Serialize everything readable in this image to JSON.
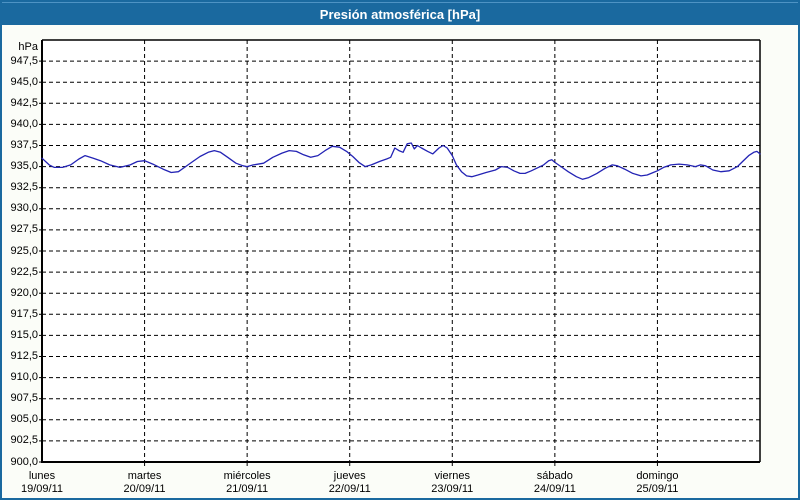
{
  "window": {
    "title": "Presión atmosférica [hPa]"
  },
  "colors": {
    "titlebar": "#1A699F",
    "frame": "#1A699F",
    "title_text": "#FFFFFF",
    "background": "#FBFDF8",
    "plot_background": "#FFFFFF",
    "grid": "#000000",
    "line": "#2323B4"
  },
  "chart_data": {
    "type": "line",
    "title": "Presión atmosférica [hPa]",
    "ylabel": "hPa",
    "y_unit_label": "hPa",
    "ylim": [
      900,
      950
    ],
    "y_tick_step": 2.5,
    "grid": "dashed",
    "legend_position": "none",
    "y_ticks": [
      {
        "label": "947,5",
        "value": 947.5
      },
      {
        "label": "945,0",
        "value": 945.0
      },
      {
        "label": "942,5",
        "value": 942.5
      },
      {
        "label": "940,0",
        "value": 940.0
      },
      {
        "label": "937,5",
        "value": 937.5
      },
      {
        "label": "935,0",
        "value": 935.0
      },
      {
        "label": "932,5",
        "value": 932.5
      },
      {
        "label": "930,0",
        "value": 930.0
      },
      {
        "label": "927,5",
        "value": 927.5
      },
      {
        "label": "925,0",
        "value": 925.0
      },
      {
        "label": "922,5",
        "value": 922.5
      },
      {
        "label": "920,0",
        "value": 920.0
      },
      {
        "label": "917,5",
        "value": 917.5
      },
      {
        "label": "915,0",
        "value": 915.0
      },
      {
        "label": "912,5",
        "value": 912.5
      },
      {
        "label": "910,0",
        "value": 910.0
      },
      {
        "label": "907,5",
        "value": 907.5
      },
      {
        "label": "905,0",
        "value": 905.0
      },
      {
        "label": "902,5",
        "value": 902.5
      },
      {
        "label": "900,0",
        "value": 900.0
      }
    ],
    "x_range_days": [
      0,
      7
    ],
    "x_days": [
      {
        "name": "lunes",
        "date": "19/09/11"
      },
      {
        "name": "martes",
        "date": "20/09/11"
      },
      {
        "name": "miércoles",
        "date": "21/09/11"
      },
      {
        "name": "jueves",
        "date": "22/09/11"
      },
      {
        "name": "viernes",
        "date": "23/09/11"
      },
      {
        "name": "sábado",
        "date": "24/09/11"
      },
      {
        "name": "domingo",
        "date": "25/09/11"
      }
    ],
    "series": [
      {
        "name": "Presión atmosférica",
        "unit": "hPa",
        "x_unit": "days_since_2011-09-19_00:00",
        "points": [
          [
            0.0,
            936.0
          ],
          [
            0.07,
            935.2
          ],
          [
            0.12,
            934.9
          ],
          [
            0.2,
            934.9
          ],
          [
            0.28,
            935.2
          ],
          [
            0.36,
            935.9
          ],
          [
            0.42,
            936.3
          ],
          [
            0.5,
            936.0
          ],
          [
            0.57,
            935.7
          ],
          [
            0.66,
            935.2
          ],
          [
            0.76,
            934.9
          ],
          [
            0.86,
            935.2
          ],
          [
            0.93,
            935.6
          ],
          [
            1.0,
            935.7
          ],
          [
            1.08,
            935.3
          ],
          [
            1.18,
            934.7
          ],
          [
            1.26,
            934.3
          ],
          [
            1.33,
            934.4
          ],
          [
            1.4,
            935.0
          ],
          [
            1.47,
            935.6
          ],
          [
            1.54,
            936.2
          ],
          [
            1.62,
            936.7
          ],
          [
            1.68,
            936.9
          ],
          [
            1.74,
            936.7
          ],
          [
            1.81,
            936.1
          ],
          [
            1.89,
            935.4
          ],
          [
            1.96,
            935.1
          ],
          [
            2.0,
            935.0
          ],
          [
            2.06,
            935.2
          ],
          [
            2.16,
            935.4
          ],
          [
            2.25,
            936.1
          ],
          [
            2.34,
            936.6
          ],
          [
            2.41,
            936.9
          ],
          [
            2.48,
            936.8
          ],
          [
            2.55,
            936.4
          ],
          [
            2.62,
            936.1
          ],
          [
            2.69,
            936.3
          ],
          [
            2.76,
            936.9
          ],
          [
            2.83,
            937.4
          ],
          [
            2.9,
            937.3
          ],
          [
            2.97,
            936.8
          ],
          [
            3.03,
            936.2
          ],
          [
            3.09,
            935.5
          ],
          [
            3.15,
            935.0
          ],
          [
            3.21,
            935.2
          ],
          [
            3.29,
            935.6
          ],
          [
            3.36,
            935.9
          ],
          [
            3.4,
            936.1
          ],
          [
            3.44,
            937.2
          ],
          [
            3.48,
            936.9
          ],
          [
            3.52,
            936.7
          ],
          [
            3.56,
            937.7
          ],
          [
            3.6,
            937.8
          ],
          [
            3.63,
            937.1
          ],
          [
            3.66,
            937.5
          ],
          [
            3.7,
            937.2
          ],
          [
            3.76,
            936.8
          ],
          [
            3.81,
            936.5
          ],
          [
            3.87,
            937.2
          ],
          [
            3.91,
            937.5
          ],
          [
            3.95,
            937.2
          ],
          [
            4.0,
            936.3
          ],
          [
            4.04,
            935.2
          ],
          [
            4.09,
            934.4
          ],
          [
            4.14,
            933.9
          ],
          [
            4.19,
            933.8
          ],
          [
            4.25,
            934.0
          ],
          [
            4.33,
            934.3
          ],
          [
            4.42,
            934.6
          ],
          [
            4.48,
            935.0
          ],
          [
            4.54,
            934.9
          ],
          [
            4.6,
            934.5
          ],
          [
            4.66,
            934.2
          ],
          [
            4.71,
            934.2
          ],
          [
            4.77,
            934.5
          ],
          [
            4.84,
            934.9
          ],
          [
            4.89,
            935.2
          ],
          [
            4.94,
            935.7
          ],
          [
            4.97,
            935.8
          ],
          [
            5.0,
            935.5
          ],
          [
            5.06,
            935.0
          ],
          [
            5.13,
            934.4
          ],
          [
            5.21,
            933.8
          ],
          [
            5.27,
            933.5
          ],
          [
            5.33,
            933.7
          ],
          [
            5.41,
            934.2
          ],
          [
            5.49,
            934.8
          ],
          [
            5.56,
            935.2
          ],
          [
            5.61,
            935.1
          ],
          [
            5.68,
            934.7
          ],
          [
            5.76,
            934.2
          ],
          [
            5.84,
            933.9
          ],
          [
            5.9,
            934.0
          ],
          [
            5.96,
            934.3
          ],
          [
            6.0,
            934.5
          ],
          [
            6.06,
            934.9
          ],
          [
            6.13,
            935.2
          ],
          [
            6.21,
            935.3
          ],
          [
            6.29,
            935.2
          ],
          [
            6.37,
            935.0
          ],
          [
            6.42,
            935.2
          ],
          [
            6.47,
            935.1
          ],
          [
            6.54,
            934.6
          ],
          [
            6.62,
            934.4
          ],
          [
            6.7,
            934.5
          ],
          [
            6.78,
            935.0
          ],
          [
            6.83,
            935.6
          ],
          [
            6.89,
            936.3
          ],
          [
            6.94,
            936.7
          ],
          [
            6.97,
            936.8
          ],
          [
            7.0,
            936.5
          ]
        ]
      }
    ]
  }
}
